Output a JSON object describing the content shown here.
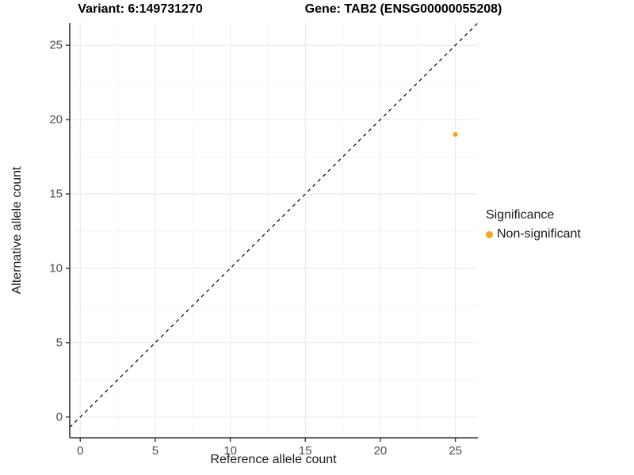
{
  "figure": {
    "background": "#ffffff"
  },
  "titles": {
    "variant": "Variant: 6:149731270",
    "gene": "Gene: TAB2 (ENSG00000055208)"
  },
  "chart_data": {
    "type": "scatter",
    "title_left": "Variant: 6:149731270",
    "title_right": "Gene: TAB2 (ENSG00000055208)",
    "xlabel": "Reference allele count",
    "ylabel": "Alternative allele count",
    "xlim": [
      -0.7,
      26.5
    ],
    "ylim": [
      -1.4,
      26.5
    ],
    "x_ticks": [
      0,
      5,
      10,
      15,
      20,
      25
    ],
    "y_ticks": [
      0,
      5,
      10,
      15,
      20,
      25
    ],
    "x_minor_ticks": [
      2.5,
      7.5,
      12.5,
      17.5,
      22.5
    ],
    "y_minor_ticks": [
      2.5,
      7.5,
      12.5,
      17.5,
      22.5
    ],
    "grid": true,
    "series": [
      {
        "name": "Non-significant",
        "color": "#FAA21E",
        "points": [
          {
            "x": 25,
            "y": 19
          }
        ]
      }
    ],
    "reference_line": {
      "type": "identity",
      "style": "dashed",
      "color": "#000000"
    },
    "legend": {
      "title": "Significance",
      "position": "right",
      "items": [
        {
          "label": "Non-significant",
          "color": "#FAA21E"
        }
      ]
    },
    "colors": {
      "point": "#FAA21E",
      "grid_major": "#EBEBEB",
      "grid_minor": "#F5F5F5",
      "axis_line": "#333333",
      "tick_mark": "#333333"
    }
  }
}
